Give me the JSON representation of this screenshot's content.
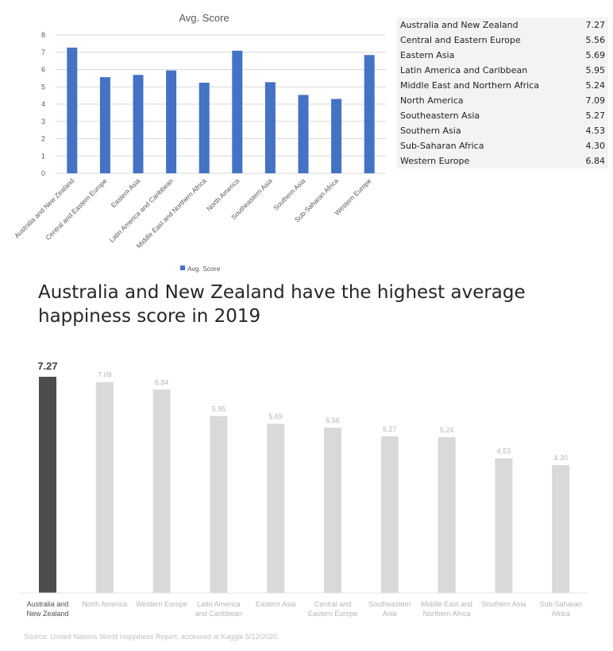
{
  "headline": "Australia and New Zealand have the highest average happiness score in 2019",
  "source": "Source: United Nations World Happiness Report, accessed at Kaggle 5/12/2020.",
  "table": {
    "rows": [
      {
        "region": "Australia and New Zealand",
        "score": "7.27"
      },
      {
        "region": "Central and Eastern Europe",
        "score": "5.56"
      },
      {
        "region": "Eastern Asia",
        "score": "5.69"
      },
      {
        "region": "Latin America and Caribbean",
        "score": "5.95"
      },
      {
        "region": "Middle East and Northern Africa",
        "score": "5.24"
      },
      {
        "region": "North America",
        "score": "7.09"
      },
      {
        "region": "Southeastern Asia",
        "score": "5.27"
      },
      {
        "region": "Southern Asia",
        "score": "4.53"
      },
      {
        "region": "Sub-Saharan Africa",
        "score": "4.30"
      },
      {
        "region": "Western Europe",
        "score": "6.84"
      }
    ]
  },
  "chart_data": [
    {
      "type": "bar",
      "title": "Avg. Score",
      "categories": [
        "Australia and New Zealand",
        "Central and Eastern Europe",
        "Eastern Asia",
        "Latin America and Caribbean",
        "Middle East and Northern Africa",
        "North America",
        "Southeastern Asia",
        "Southern Asia",
        "Sub-Saharan Africa",
        "Western Europe"
      ],
      "series": [
        {
          "name": "Avg. Score",
          "values": [
            7.27,
            5.56,
            5.69,
            5.95,
            5.24,
            7.09,
            5.27,
            4.53,
            4.3,
            6.84
          ]
        }
      ],
      "yticks": [
        "0",
        "1",
        "2",
        "3",
        "4",
        "5",
        "6",
        "7",
        "8"
      ],
      "ylim": [
        0,
        8
      ],
      "grid": true,
      "legend": "bottom",
      "color": "#4472c4"
    },
    {
      "type": "bar",
      "categories": [
        [
          "Australia and",
          "New Zealand"
        ],
        [
          "North America"
        ],
        [
          "Western Europe"
        ],
        [
          "Latin America",
          "and Caribbean"
        ],
        [
          "Eastern Asia"
        ],
        [
          "Central and",
          "Eastern Europe"
        ],
        [
          "Southeastern",
          "Asia"
        ],
        [
          "Middle East and",
          "Northern Africa"
        ],
        [
          "Southern Asia"
        ],
        [
          "Sub-Saharan",
          "Africa"
        ]
      ],
      "values": [
        7.27,
        7.09,
        6.84,
        5.95,
        5.69,
        5.56,
        5.27,
        5.24,
        4.53,
        4.3
      ],
      "value_labels": [
        "7.27",
        "7.09",
        "6.84",
        "5.95",
        "5.69",
        "5.56",
        "5.27",
        "5.24",
        "4.53",
        "4.30"
      ],
      "ylim": [
        0,
        7.27
      ],
      "grid": false,
      "highlight_color": "#4d4d4d",
      "color": "#d9d9d9"
    }
  ]
}
